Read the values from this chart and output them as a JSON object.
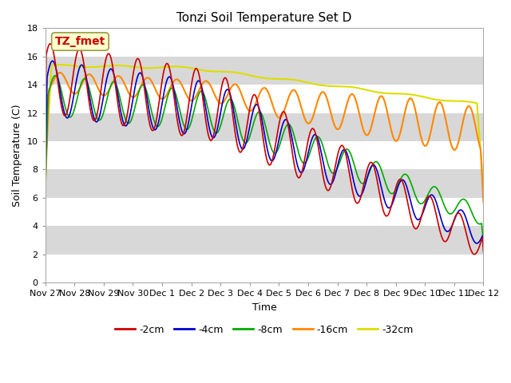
{
  "title": "Tonzi Soil Temperature Set D",
  "xlabel": "Time",
  "ylabel": "Soil Temperature (C)",
  "ylim": [
    0,
    18
  ],
  "yticks": [
    0,
    2,
    4,
    6,
    8,
    10,
    12,
    14,
    16,
    18
  ],
  "legend_labels": [
    "-2cm",
    "-4cm",
    "-8cm",
    "-16cm",
    "-32cm"
  ],
  "legend_colors": [
    "#cc0000",
    "#0000cc",
    "#00aa00",
    "#ff8800",
    "#dddd00"
  ],
  "line_widths": [
    1.2,
    1.2,
    1.2,
    1.5,
    1.5
  ],
  "annotation_text": "TZ_fmet",
  "annotation_color": "#cc0000",
  "annotation_bg": "#ffffcc",
  "annotation_edge": "#999944",
  "bg_color": "#d8d8d8",
  "white_band_alpha": 1.0,
  "xtick_labels": [
    "Nov 27",
    "Nov 28",
    "Nov 29",
    "Nov 30",
    "Dec 1",
    "Dec 2",
    "Dec 3",
    "Dec 4",
    "Dec 5",
    "Dec 6",
    "Dec 7",
    "Dec 8",
    "Dec 9",
    "Dec 10",
    "Dec 11",
    "Dec 12"
  ],
  "num_points": 480
}
